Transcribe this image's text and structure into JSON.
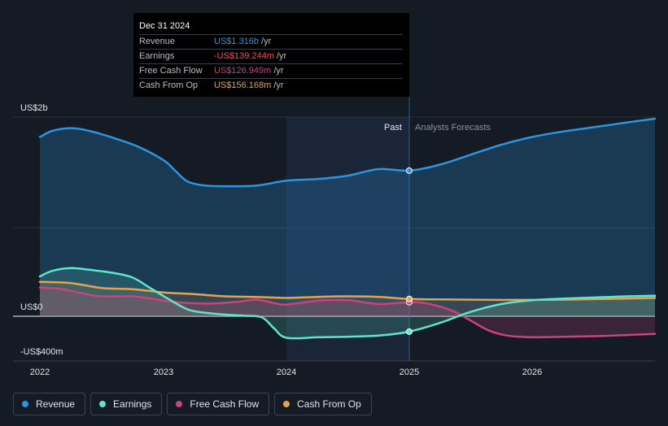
{
  "colors": {
    "revenue": "#2d94e0",
    "earnings": "#5ee6cd",
    "fcf": "#c7447e",
    "cfo": "#e3a352",
    "background": "#151b24"
  },
  "tooltip": {
    "date": "Dec 31 2024",
    "rows": [
      {
        "label": "Revenue",
        "value": "US$1.316b",
        "unit": "/yr",
        "color": "#2d94e0"
      },
      {
        "label": "Earnings",
        "value": "-US$139.244m",
        "unit": "/yr",
        "color": "#ff4b4b"
      },
      {
        "label": "Free Cash Flow",
        "value": "US$126.949m",
        "unit": "/yr",
        "color": "#c7447e"
      },
      {
        "label": "Cash From Op",
        "value": "US$156.168m",
        "unit": "/yr",
        "color": "#e3a352"
      }
    ]
  },
  "legend": [
    {
      "label": "Revenue",
      "color": "#2d94e0"
    },
    {
      "label": "Earnings",
      "color": "#5ee6cd"
    },
    {
      "label": "Free Cash Flow",
      "color": "#c7447e"
    },
    {
      "label": "Cash From Op",
      "color": "#e3a352"
    }
  ],
  "chart_data": {
    "type": "line",
    "ylim": [
      -400,
      1800
    ],
    "y_tick_labels": [
      {
        "value": 1800,
        "label": "US$2b"
      },
      {
        "value": 0,
        "label": "US$0"
      },
      {
        "value": -400,
        "label": "-US$400m"
      }
    ],
    "x_range": [
      2021.8,
      2026.98
    ],
    "x_ticks": [
      {
        "value": 2022,
        "label": "2022"
      },
      {
        "value": 2023,
        "label": "2023"
      },
      {
        "value": 2024,
        "label": "2024"
      },
      {
        "value": 2025,
        "label": "2025"
      },
      {
        "value": 2026,
        "label": "2026"
      }
    ],
    "past_label": "Past",
    "forecast_label": "Analysts Forecasts",
    "divider_x": 2025.0,
    "past_highlight_start": 2024.0,
    "series": [
      {
        "name": "Revenue",
        "key": "revenue",
        "points": [
          [
            2022.0,
            1620
          ],
          [
            2022.1,
            1675
          ],
          [
            2022.25,
            1700
          ],
          [
            2022.4,
            1675
          ],
          [
            2022.6,
            1610
          ],
          [
            2022.8,
            1530
          ],
          [
            2023.0,
            1410
          ],
          [
            2023.1,
            1310
          ],
          [
            2023.2,
            1215
          ],
          [
            2023.35,
            1180
          ],
          [
            2023.5,
            1175
          ],
          [
            2023.75,
            1180
          ],
          [
            2024.0,
            1225
          ],
          [
            2024.25,
            1240
          ],
          [
            2024.5,
            1270
          ],
          [
            2024.75,
            1330
          ],
          [
            2025.0,
            1316
          ],
          [
            2025.25,
            1370
          ],
          [
            2025.5,
            1460
          ],
          [
            2025.75,
            1550
          ],
          [
            2026.0,
            1620
          ],
          [
            2026.25,
            1670
          ],
          [
            2026.5,
            1710
          ],
          [
            2026.75,
            1750
          ],
          [
            2026.98,
            1785
          ]
        ]
      },
      {
        "name": "Earnings",
        "key": "earnings",
        "points": [
          [
            2022.0,
            360
          ],
          [
            2022.1,
            410
          ],
          [
            2022.25,
            435
          ],
          [
            2022.4,
            420
          ],
          [
            2022.6,
            390
          ],
          [
            2022.75,
            350
          ],
          [
            2022.9,
            250
          ],
          [
            2023.05,
            150
          ],
          [
            2023.2,
            60
          ],
          [
            2023.35,
            30
          ],
          [
            2023.5,
            15
          ],
          [
            2023.65,
            5
          ],
          [
            2023.8,
            -10
          ],
          [
            2023.9,
            -110
          ],
          [
            2024.0,
            -195
          ],
          [
            2024.25,
            -190
          ],
          [
            2024.5,
            -185
          ],
          [
            2024.75,
            -175
          ],
          [
            2025.0,
            -139.2
          ],
          [
            2025.25,
            -60
          ],
          [
            2025.5,
            40
          ],
          [
            2025.75,
            110
          ],
          [
            2026.0,
            145
          ],
          [
            2026.25,
            160
          ],
          [
            2026.5,
            170
          ],
          [
            2026.75,
            180
          ],
          [
            2026.98,
            185
          ]
        ]
      },
      {
        "name": "Free Cash Flow",
        "key": "fcf",
        "points": [
          [
            2022.0,
            260
          ],
          [
            2022.15,
            250
          ],
          [
            2022.25,
            230
          ],
          [
            2022.45,
            185
          ],
          [
            2022.6,
            180
          ],
          [
            2022.75,
            180
          ],
          [
            2022.9,
            160
          ],
          [
            2023.0,
            140
          ],
          [
            2023.2,
            120
          ],
          [
            2023.4,
            115
          ],
          [
            2023.6,
            130
          ],
          [
            2023.75,
            150
          ],
          [
            2023.9,
            120
          ],
          [
            2024.0,
            105
          ],
          [
            2024.25,
            140
          ],
          [
            2024.5,
            145
          ],
          [
            2024.75,
            110
          ],
          [
            2025.0,
            126.9
          ],
          [
            2025.15,
            115
          ],
          [
            2025.35,
            50
          ],
          [
            2025.5,
            -40
          ],
          [
            2025.65,
            -130
          ],
          [
            2025.8,
            -175
          ],
          [
            2026.0,
            -190
          ],
          [
            2026.25,
            -185
          ],
          [
            2026.5,
            -180
          ],
          [
            2026.75,
            -170
          ],
          [
            2026.98,
            -160
          ]
        ]
      },
      {
        "name": "Cash From Op",
        "key": "cfo",
        "points": [
          [
            2022.0,
            310
          ],
          [
            2022.25,
            300
          ],
          [
            2022.5,
            255
          ],
          [
            2022.75,
            245
          ],
          [
            2023.0,
            215
          ],
          [
            2023.25,
            200
          ],
          [
            2023.5,
            180
          ],
          [
            2023.75,
            175
          ],
          [
            2024.0,
            165
          ],
          [
            2024.25,
            175
          ],
          [
            2024.5,
            180
          ],
          [
            2024.75,
            175
          ],
          [
            2025.0,
            156.2
          ],
          [
            2025.25,
            152
          ],
          [
            2025.5,
            150
          ],
          [
            2025.75,
            148
          ],
          [
            2026.0,
            148
          ],
          [
            2026.25,
            150
          ],
          [
            2026.5,
            155
          ],
          [
            2026.75,
            160
          ],
          [
            2026.98,
            165
          ]
        ]
      }
    ],
    "highlight_points": [
      {
        "series": "revenue",
        "x": 2025.0,
        "y": 1316
      },
      {
        "series": "earnings",
        "x": 2025.0,
        "y": -139.2
      },
      {
        "series": "fcf",
        "x": 2025.0,
        "y": 126.9
      },
      {
        "series": "cfo",
        "x": 2025.0,
        "y": 156.2
      }
    ]
  }
}
